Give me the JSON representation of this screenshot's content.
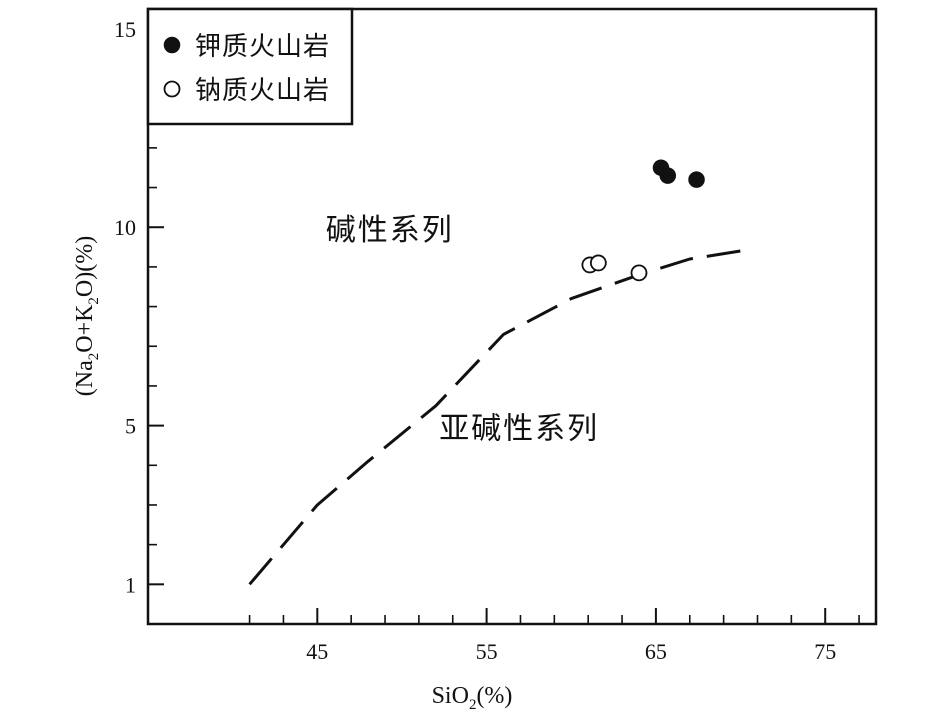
{
  "chart_data": {
    "type": "scatter",
    "title": "",
    "xlabel": {
      "main": "SiO",
      "sub": "2",
      "tail": "(%)"
    },
    "ylabel": {
      "p1": "(Na",
      "s1": "2",
      "p2": "O+K",
      "s2": "2",
      "p3": "O)(%)"
    },
    "xlim": [
      35,
      78
    ],
    "ylim": [
      0,
      15.5
    ],
    "x_ticks": [
      45,
      55,
      65,
      75
    ],
    "x_minor_ticks": [
      41,
      43,
      47,
      49,
      51,
      53,
      57,
      59,
      61,
      63,
      67,
      69,
      71,
      73,
      77
    ],
    "y_ticks": [
      1,
      5,
      10,
      15
    ],
    "y_minor_ticks": [
      2,
      3,
      4,
      6,
      7,
      8,
      9,
      11,
      12,
      13,
      14
    ],
    "series": [
      {
        "name": "钾质火山岩",
        "marker": "filled-circle",
        "x": [
          65.3,
          65.7,
          67.4
        ],
        "y": [
          11.5,
          11.3,
          11.2
        ]
      },
      {
        "name": "钠质火山岩",
        "marker": "open-circle",
        "x": [
          61.1,
          61.6,
          64.0
        ],
        "y": [
          9.05,
          9.1,
          8.85
        ]
      }
    ],
    "divider_line": {
      "name": "alkaline/subalkaline boundary",
      "style": "dashed",
      "x": [
        41,
        45,
        48,
        52,
        56,
        60,
        64,
        67,
        70
      ],
      "y": [
        1.0,
        3.0,
        4.1,
        5.5,
        7.3,
        8.2,
        8.8,
        9.2,
        9.4
      ]
    },
    "legend": {
      "position": "top-left"
    },
    "annotations": [
      {
        "text": "碱性系列",
        "x": 45.5,
        "y": 9.95
      },
      {
        "text": "亚碱性系列",
        "x": 52.2,
        "y": 4.95
      }
    ]
  },
  "colors": {
    "ink": "#111111",
    "background": "#ffffff"
  }
}
